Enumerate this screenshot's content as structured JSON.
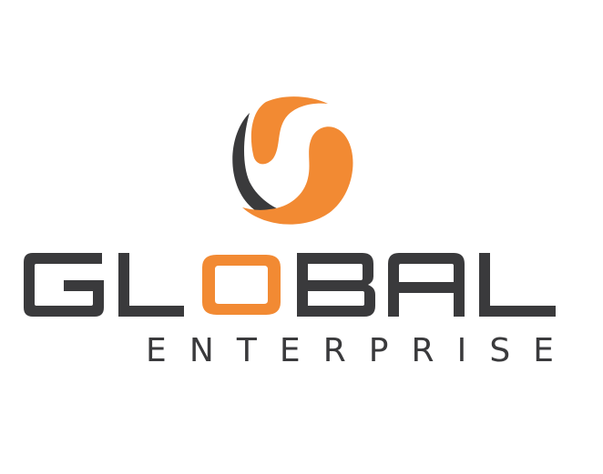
{
  "brand": {
    "name": "GLOBAL",
    "subtitle": "ENTERPRISE",
    "logo_icon": "swirl-globe-icon",
    "colors": {
      "primary_dark": "#3a3a3c",
      "accent_orange": "#f28a33",
      "background": "#ffffff"
    }
  }
}
